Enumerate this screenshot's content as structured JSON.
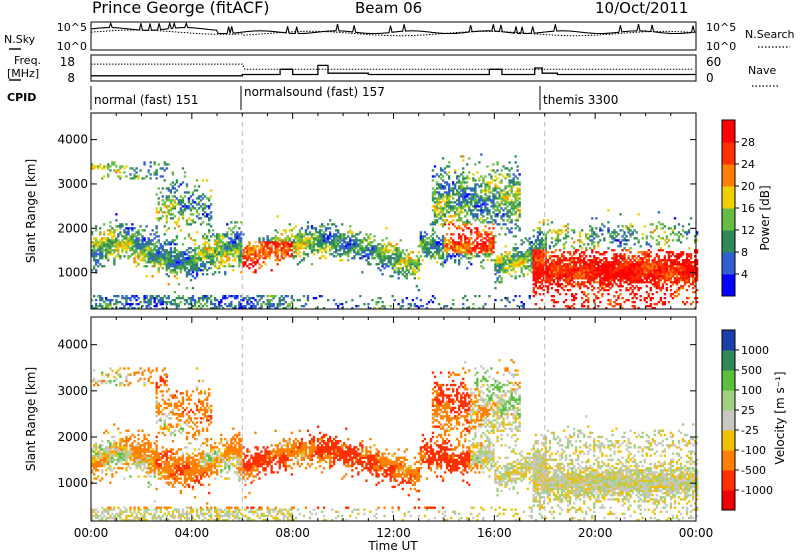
{
  "header": {
    "station": "Prince George (fitACF)",
    "beam": "Beam 06",
    "date": "10/Oct/2011"
  },
  "top_panels": {
    "nsky_label": "N.Sky",
    "nsky_ticks": [
      "10^5",
      "10^0"
    ],
    "nsearch_label": "N.Search",
    "nsearch_ticks": [
      "10^5",
      "10^0"
    ],
    "freq_label": "Freq.",
    "freq_unit": "[MHz]",
    "freq_ticks": [
      "18",
      "8"
    ],
    "nave_label": "Nave",
    "nave_ticks": [
      "60",
      "0"
    ],
    "cpid_label": "CPID",
    "modes": [
      {
        "name": "normal (fast) 151",
        "start_hour": 0,
        "end_hour": 6
      },
      {
        "name": "normalsound (fast) 157",
        "start_hour": 6,
        "end_hour": 18
      },
      {
        "name": "themis 3300",
        "start_hour": 18,
        "end_hour": 24
      }
    ]
  },
  "chart_data": [
    {
      "type": "heatmap",
      "name": "Power",
      "ylabel": "Slant Range [km]",
      "yticks": [
        1000,
        2000,
        3000,
        4000
      ],
      "ylim": [
        180,
        4600
      ],
      "xlim": [
        0,
        24
      ],
      "colorbar_label": "Power [dB]",
      "colorbar_ticks": [
        "4",
        "8",
        "12",
        "16",
        "20",
        "24",
        "28"
      ],
      "colorbar_colors": [
        "#0000ff",
        "#2f5fd0",
        "#2e8b57",
        "#66bb44",
        "#f0d000",
        "#ff8000",
        "#ff3000",
        "#ff0000"
      ]
    },
    {
      "type": "heatmap",
      "name": "Velocity",
      "ylabel": "Slant Range [km]",
      "yticks": [
        1000,
        2000,
        3000,
        4000
      ],
      "ylim": [
        180,
        4600
      ],
      "xlim": [
        0,
        24
      ],
      "xlabel": "Time UT",
      "xticks": [
        "00:00",
        "04:00",
        "08:00",
        "12:00",
        "16:00",
        "20:00",
        "00:00"
      ],
      "colorbar_label": "Velocity [m s⁻¹]",
      "colorbar_ticks": [
        "1000",
        "500",
        "100",
        "25",
        "-25",
        "-100",
        "-500",
        "-1000"
      ],
      "colorbar_colors": [
        "#1a3fa8",
        "#2e8b57",
        "#5cbf3c",
        "#a0d080",
        "#c8c8c0",
        "#f0c000",
        "#ff8000",
        "#ff3000",
        "#ee0000"
      ]
    }
  ]
}
